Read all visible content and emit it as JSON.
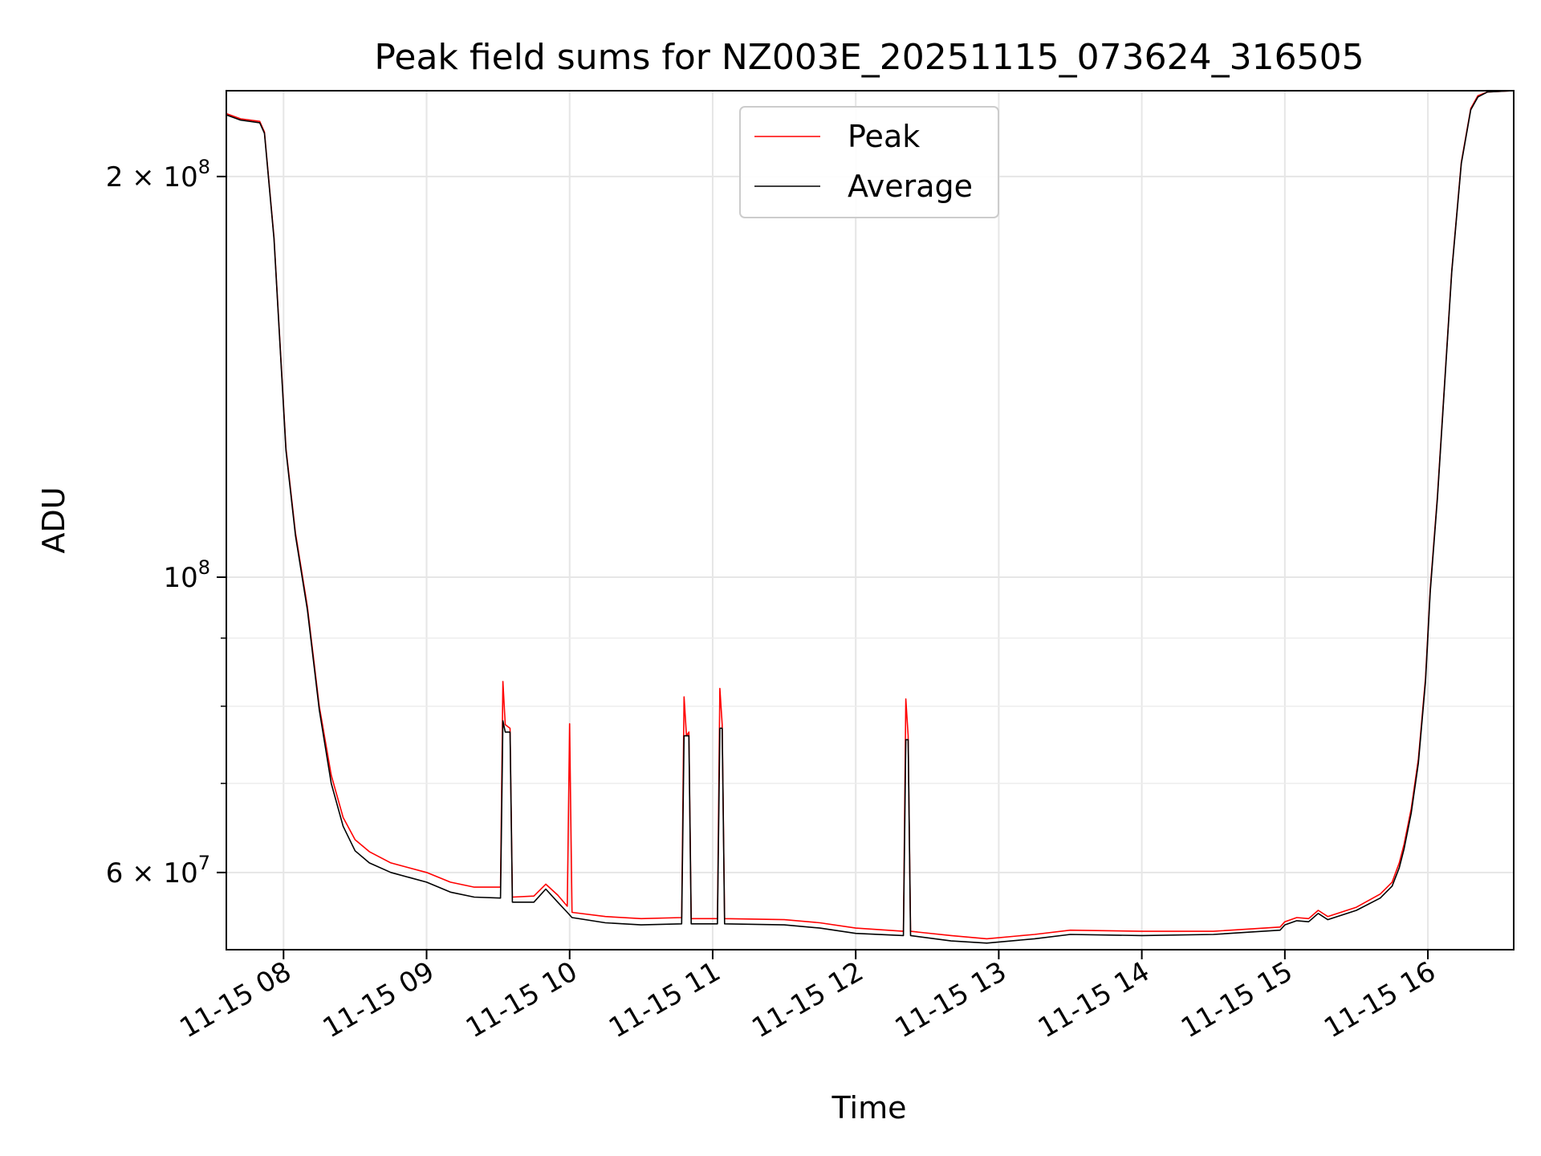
{
  "chart_data": {
    "type": "line",
    "title": "Peak field sums for NZ003E_20251115_073624_316505",
    "xlabel": "Time",
    "ylabel": "ADU",
    "yscale": "log",
    "grid": true,
    "legend_position": "top-center",
    "x_range": [
      "2025-11-15 07:36",
      "2025-11-15 16:36"
    ],
    "y_range": [
      52500000,
      232000000
    ],
    "x_ticks": [
      {
        "label": "11-15 08",
        "value": "2025-11-15 08:00"
      },
      {
        "label": "11-15 09",
        "value": "2025-11-15 09:00"
      },
      {
        "label": "11-15 10",
        "value": "2025-11-15 10:00"
      },
      {
        "label": "11-15 11",
        "value": "2025-11-15 11:00"
      },
      {
        "label": "11-15 12",
        "value": "2025-11-15 12:00"
      },
      {
        "label": "11-15 13",
        "value": "2025-11-15 13:00"
      },
      {
        "label": "11-15 14",
        "value": "2025-11-15 14:00"
      },
      {
        "label": "11-15 15",
        "value": "2025-11-15 15:00"
      },
      {
        "label": "11-15 16",
        "value": "2025-11-15 16:00"
      }
    ],
    "y_ticks": [
      {
        "value": 60000000,
        "base": "6 × 10",
        "exp": "7"
      },
      {
        "value": 100000000,
        "base": "10",
        "exp": "8"
      },
      {
        "value": 200000000,
        "base": "2 × 10",
        "exp": "8"
      }
    ],
    "y_minor_ticks": [
      70000000,
      80000000,
      90000000
    ],
    "series": [
      {
        "name": "Peak",
        "color": "#ff0000",
        "points": [
          [
            "2025-11-15 07:36",
            223000000
          ],
          [
            "2025-11-15 07:42",
            221000000
          ],
          [
            "2025-11-15 07:50",
            220000000
          ],
          [
            "2025-11-15 07:52",
            216000000
          ],
          [
            "2025-11-15 07:56",
            180000000
          ],
          [
            "2025-11-15 08:01",
            125000000
          ],
          [
            "2025-11-15 08:05",
            108000000
          ],
          [
            "2025-11-15 08:10",
            95000000
          ],
          [
            "2025-11-15 08:15",
            80000000
          ],
          [
            "2025-11-15 08:20",
            71000000
          ],
          [
            "2025-11-15 08:25",
            66000000
          ],
          [
            "2025-11-15 08:30",
            63500000
          ],
          [
            "2025-11-15 08:36",
            62200000
          ],
          [
            "2025-11-15 08:45",
            61000000
          ],
          [
            "2025-11-15 09:00",
            60000000
          ],
          [
            "2025-11-15 09:10",
            59000000
          ],
          [
            "2025-11-15 09:20",
            58500000
          ],
          [
            "2025-11-15 09:31",
            58500000
          ],
          [
            "2025-11-15 09:32",
            83500000
          ],
          [
            "2025-11-15 09:33",
            77500000
          ],
          [
            "2025-11-15 09:35",
            77000000
          ],
          [
            "2025-11-15 09:36",
            57500000
          ],
          [
            "2025-11-15 09:45",
            57600000
          ],
          [
            "2025-11-15 09:50",
            58800000
          ],
          [
            "2025-11-15 09:55",
            57700000
          ],
          [
            "2025-11-15 09:59",
            56600000
          ],
          [
            "2025-11-15 10:00",
            77600000
          ],
          [
            "2025-11-15 10:01",
            56000000
          ],
          [
            "2025-11-15 10:15",
            55600000
          ],
          [
            "2025-11-15 10:30",
            55400000
          ],
          [
            "2025-11-15 10:47",
            55500000
          ],
          [
            "2025-11-15 10:48",
            81300000
          ],
          [
            "2025-11-15 10:49",
            76000000
          ],
          [
            "2025-11-15 10:50",
            76500000
          ],
          [
            "2025-11-15 10:51",
            55400000
          ],
          [
            "2025-11-15 11:02",
            55400000
          ],
          [
            "2025-11-15 11:03",
            82500000
          ],
          [
            "2025-11-15 11:04",
            77500000
          ],
          [
            "2025-11-15 11:05",
            55400000
          ],
          [
            "2025-11-15 11:30",
            55300000
          ],
          [
            "2025-11-15 11:45",
            55000000
          ],
          [
            "2025-11-15 12:00",
            54500000
          ],
          [
            "2025-11-15 12:20",
            54200000
          ],
          [
            "2025-11-15 12:21",
            81000000
          ],
          [
            "2025-11-15 12:22",
            76000000
          ],
          [
            "2025-11-15 12:23",
            54200000
          ],
          [
            "2025-11-15 12:40",
            53800000
          ],
          [
            "2025-11-15 12:55",
            53500000
          ],
          [
            "2025-11-15 13:15",
            53900000
          ],
          [
            "2025-11-15 13:30",
            54300000
          ],
          [
            "2025-11-15 14:00",
            54200000
          ],
          [
            "2025-11-15 14:30",
            54200000
          ],
          [
            "2025-11-15 14:58",
            54600000
          ],
          [
            "2025-11-15 15:00",
            55100000
          ],
          [
            "2025-11-15 15:05",
            55500000
          ],
          [
            "2025-11-15 15:10",
            55400000
          ],
          [
            "2025-11-15 15:14",
            56200000
          ],
          [
            "2025-11-15 15:18",
            55600000
          ],
          [
            "2025-11-15 15:30",
            56500000
          ],
          [
            "2025-11-15 15:40",
            57800000
          ],
          [
            "2025-11-15 15:45",
            59000000
          ],
          [
            "2025-11-15 15:48",
            61000000
          ],
          [
            "2025-11-15 15:50",
            63000000
          ],
          [
            "2025-11-15 15:53",
            67000000
          ],
          [
            "2025-11-15 15:56",
            73000000
          ],
          [
            "2025-11-15 15:59",
            84000000
          ],
          [
            "2025-11-15 16:01",
            98000000
          ],
          [
            "2025-11-15 16:04",
            115000000
          ],
          [
            "2025-11-15 16:07",
            140000000
          ],
          [
            "2025-11-15 16:10",
            170000000
          ],
          [
            "2025-11-15 16:14",
            205000000
          ],
          [
            "2025-11-15 16:18",
            225000000
          ],
          [
            "2025-11-15 16:21",
            230000000
          ],
          [
            "2025-11-15 16:25",
            231500000
          ],
          [
            "2025-11-15 16:36",
            232000000
          ]
        ]
      },
      {
        "name": "Average",
        "color": "#000000",
        "points": [
          [
            "2025-11-15 07:36",
            222500000
          ],
          [
            "2025-11-15 07:42",
            220500000
          ],
          [
            "2025-11-15 07:50",
            219500000
          ],
          [
            "2025-11-15 07:52",
            215500000
          ],
          [
            "2025-11-15 07:56",
            179500000
          ],
          [
            "2025-11-15 08:01",
            124500000
          ],
          [
            "2025-11-15 08:05",
            107500000
          ],
          [
            "2025-11-15 08:10",
            94500000
          ],
          [
            "2025-11-15 08:15",
            79500000
          ],
          [
            "2025-11-15 08:20",
            70000000
          ],
          [
            "2025-11-15 08:25",
            65000000
          ],
          [
            "2025-11-15 08:30",
            62300000
          ],
          [
            "2025-11-15 08:36",
            61000000
          ],
          [
            "2025-11-15 08:45",
            60000000
          ],
          [
            "2025-11-15 09:00",
            59000000
          ],
          [
            "2025-11-15 09:10",
            58000000
          ],
          [
            "2025-11-15 09:20",
            57500000
          ],
          [
            "2025-11-15 09:31",
            57400000
          ],
          [
            "2025-11-15 09:32",
            78000000
          ],
          [
            "2025-11-15 09:33",
            76500000
          ],
          [
            "2025-11-15 09:35",
            76500000
          ],
          [
            "2025-11-15 09:36",
            57000000
          ],
          [
            "2025-11-15 09:45",
            57000000
          ],
          [
            "2025-11-15 09:50",
            58300000
          ],
          [
            "2025-11-15 09:55",
            57000000
          ],
          [
            "2025-11-15 09:59",
            56000000
          ],
          [
            "2025-11-15 10:01",
            55500000
          ],
          [
            "2025-11-15 10:15",
            55000000
          ],
          [
            "2025-11-15 10:30",
            54800000
          ],
          [
            "2025-11-15 10:47",
            54900000
          ],
          [
            "2025-11-15 10:48",
            76000000
          ],
          [
            "2025-11-15 10:50",
            76000000
          ],
          [
            "2025-11-15 10:51",
            54900000
          ],
          [
            "2025-11-15 11:02",
            54900000
          ],
          [
            "2025-11-15 11:03",
            77000000
          ],
          [
            "2025-11-15 11:04",
            77000000
          ],
          [
            "2025-11-15 11:05",
            54900000
          ],
          [
            "2025-11-15 11:30",
            54800000
          ],
          [
            "2025-11-15 11:45",
            54500000
          ],
          [
            "2025-11-15 12:00",
            54000000
          ],
          [
            "2025-11-15 12:20",
            53800000
          ],
          [
            "2025-11-15 12:21",
            75500000
          ],
          [
            "2025-11-15 12:22",
            75500000
          ],
          [
            "2025-11-15 12:23",
            53800000
          ],
          [
            "2025-11-15 12:40",
            53300000
          ],
          [
            "2025-11-15 12:55",
            53100000
          ],
          [
            "2025-11-15 13:15",
            53500000
          ],
          [
            "2025-11-15 13:30",
            53900000
          ],
          [
            "2025-11-15 14:00",
            53800000
          ],
          [
            "2025-11-15 14:30",
            53900000
          ],
          [
            "2025-11-15 14:58",
            54300000
          ],
          [
            "2025-11-15 15:00",
            54800000
          ],
          [
            "2025-11-15 15:05",
            55200000
          ],
          [
            "2025-11-15 15:10",
            55100000
          ],
          [
            "2025-11-15 15:14",
            55900000
          ],
          [
            "2025-11-15 15:18",
            55300000
          ],
          [
            "2025-11-15 15:30",
            56200000
          ],
          [
            "2025-11-15 15:40",
            57400000
          ],
          [
            "2025-11-15 15:45",
            58600000
          ],
          [
            "2025-11-15 15:48",
            60500000
          ],
          [
            "2025-11-15 15:50",
            62500000
          ],
          [
            "2025-11-15 15:53",
            66500000
          ],
          [
            "2025-11-15 15:56",
            72500000
          ],
          [
            "2025-11-15 15:59",
            83500000
          ],
          [
            "2025-11-15 16:01",
            97500000
          ],
          [
            "2025-11-15 16:04",
            114500000
          ],
          [
            "2025-11-15 16:07",
            139500000
          ],
          [
            "2025-11-15 16:10",
            169500000
          ],
          [
            "2025-11-15 16:14",
            204500000
          ],
          [
            "2025-11-15 16:18",
            224500000
          ],
          [
            "2025-11-15 16:21",
            229500000
          ],
          [
            "2025-11-15 16:25",
            231500000
          ],
          [
            "2025-11-15 16:36",
            232000000
          ]
        ]
      }
    ]
  }
}
